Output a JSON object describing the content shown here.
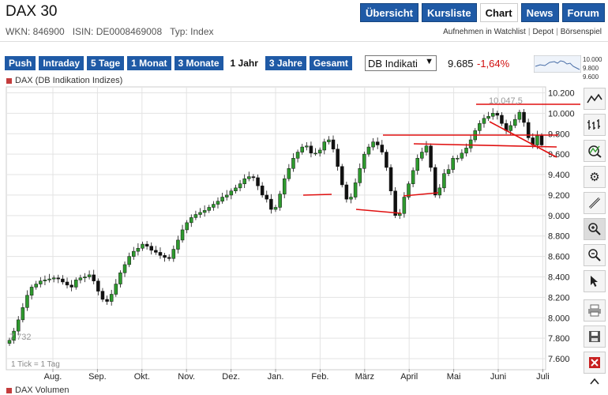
{
  "header": {
    "title": "DAX 30",
    "nav": [
      "Übersicht",
      "Kursliste",
      "Chart",
      "News",
      "Forum"
    ],
    "active_nav": 2
  },
  "meta": {
    "wkn": "WKN: 846900",
    "isin": "ISIN: DE0008469008",
    "typ": "Typ: Index"
  },
  "links": {
    "watchlist": "Aufnehmen in Watchlist",
    "depot": "Depot",
    "boersenspiel": "Börsenspiel",
    "sep": "|"
  },
  "periods": {
    "items": [
      "Push",
      "Intraday",
      "5 Tage",
      "1 Monat",
      "3 Monate",
      "1 Jahr",
      "3 Jahre",
      "Gesamt"
    ],
    "active": 5
  },
  "quote": {
    "exchange_select": "DB Indikati",
    "price": "9.685",
    "change": "-1,64%",
    "change_color": "#d01010"
  },
  "mini_chart": {
    "labels": [
      "10.000",
      "9.800",
      "9.600"
    ]
  },
  "chart": {
    "legend": "DAX (DB Indikation Indizes)",
    "volume_legend": "DAX Volumen",
    "tick_note": "1 Tick = 1 Tag",
    "high_label": "10.047,5",
    "low_label": "7.732"
  },
  "chart_data": {
    "type": "candlestick",
    "x_labels": [
      "Aug.",
      "Sep.",
      "Okt.",
      "Nov.",
      "Dez.",
      "Jan.",
      "Feb.",
      "März",
      "April",
      "Mai",
      "Juni",
      "Juli"
    ],
    "y_ticks": [
      "7.600",
      "7.800",
      "8.000",
      "8.200",
      "8.400",
      "8.600",
      "8.800",
      "9.000",
      "9.200",
      "9.400",
      "9.600",
      "9.800",
      "10.000",
      "10.200"
    ],
    "ylim": [
      7500,
      10250
    ],
    "grid": true,
    "series": [
      {
        "values": [
          7780,
          7870,
          7980,
          8100,
          8220,
          8300,
          8330,
          8360,
          8370,
          8380,
          8390,
          8380,
          8350,
          8320,
          8300,
          8370,
          8390,
          8400,
          8420,
          8360,
          8260,
          8180,
          8160,
          8230,
          8330,
          8440,
          8520,
          8600,
          8650,
          8680,
          8720,
          8700,
          8660,
          8640,
          8610,
          8590,
          8580,
          8670,
          8760,
          8860,
          8930,
          8980,
          9010,
          9030,
          9050,
          9080,
          9110,
          9140,
          9180,
          9200,
          9240,
          9270,
          9310,
          9360,
          9380,
          9370,
          9290,
          9200,
          9160,
          9060,
          9080,
          9210,
          9360,
          9460,
          9560,
          9620,
          9670,
          9680,
          9610,
          9610,
          9640,
          9720,
          9740,
          9650,
          9480,
          9300,
          9160,
          9180,
          9320,
          9460,
          9600,
          9670,
          9720,
          9690,
          9620,
          9470,
          9240,
          9000,
          9020,
          9180,
          9310,
          9440,
          9560,
          9620,
          9680,
          9470,
          9200,
          9270,
          9410,
          9450,
          9560,
          9560,
          9610,
          9660,
          9740,
          9830,
          9900,
          9950,
          9970,
          10000,
          9980,
          9900,
          9830,
          9880,
          9940,
          10010,
          9910,
          9760,
          9690,
          9780,
          9690
        ]
      }
    ],
    "annotations": "trend lines"
  },
  "toolbar": {
    "items": [
      "line-chart",
      "bar-chart",
      "indicator",
      "settings",
      "draw-line",
      "zoom-in",
      "zoom-out",
      "pointer",
      "print",
      "save",
      "delete"
    ],
    "active": 5
  },
  "colors": {
    "accent": "#1f5aa6",
    "up": "#2e9a2e",
    "down": "#111111",
    "trend": "#e01010"
  }
}
